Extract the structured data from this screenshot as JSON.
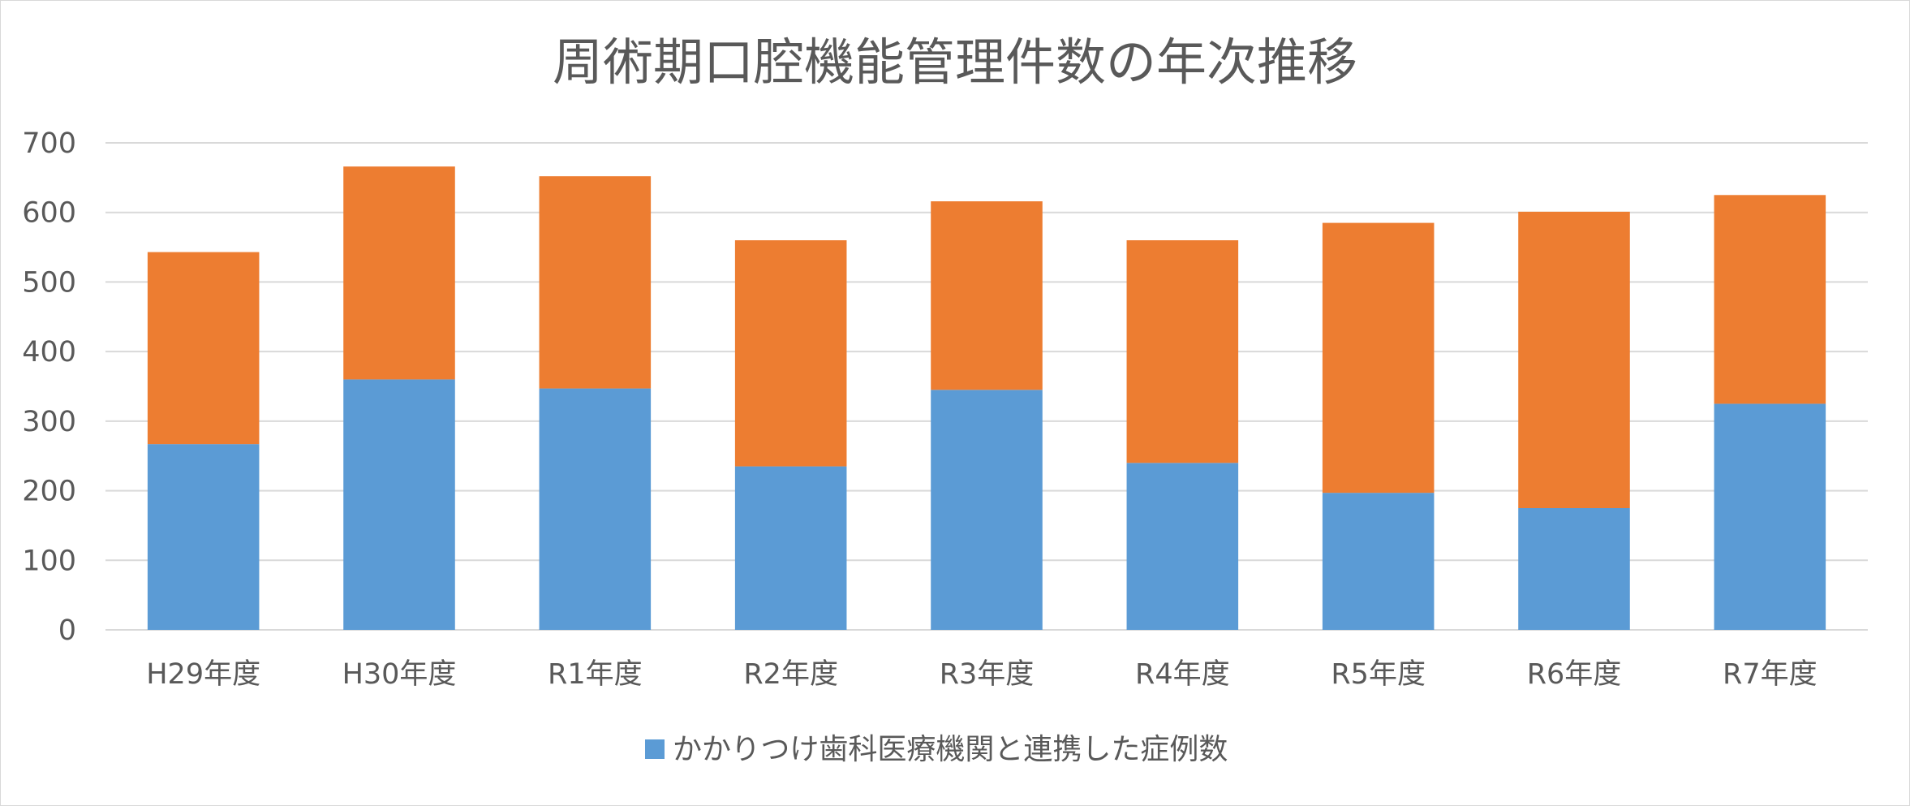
{
  "chart_data": {
    "type": "bar",
    "stacked": true,
    "title": "周術期口腔機能管理件数の年次推移",
    "categories": [
      "H29年度",
      "H30年度",
      "R1年度",
      "R2年度",
      "R3年度",
      "R4年度",
      "R5年度",
      "R6年度",
      "R7年度"
    ],
    "series": [
      {
        "name": "かかりつけ歯科医療機関と連携した症例数",
        "color": "#5b9bd5",
        "values": [
          267,
          360,
          347,
          235,
          345,
          240,
          197,
          175,
          325
        ]
      },
      {
        "color": "#ed7d31",
        "values": [
          276,
          306,
          305,
          325,
          271,
          320,
          388,
          426,
          300
        ]
      }
    ],
    "ylim": [
      0,
      700
    ],
    "yticks": [
      0,
      100,
      200,
      300,
      400,
      500,
      600,
      700
    ],
    "grid": true,
    "legend_position": "bottom",
    "gridline_color": "#d9d9d9",
    "text_color": "#595959"
  }
}
